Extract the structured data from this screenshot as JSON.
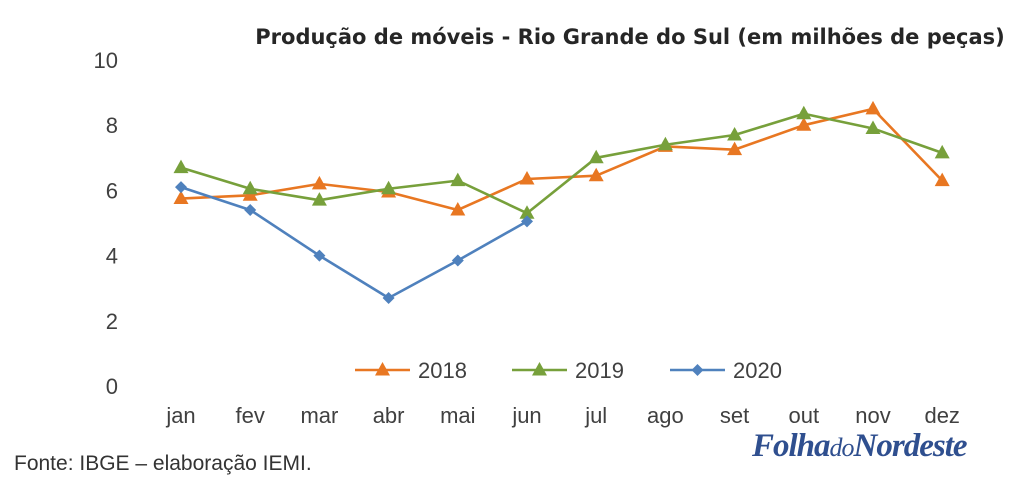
{
  "chart_data": {
    "type": "line",
    "title": "Produção de móveis - Rio Grande do Sul (em milhões de peças)",
    "xlabel": "",
    "ylabel": "",
    "ylim": [
      0,
      10
    ],
    "yticks": [
      "0",
      "2",
      "4",
      "6",
      "8",
      "10"
    ],
    "grid": false,
    "legend": "bottom-center",
    "categories": [
      "jan",
      "fev",
      "mar",
      "abr",
      "mai",
      "jun",
      "jul",
      "ago",
      "set",
      "out",
      "nov",
      "dez"
    ],
    "series": [
      {
        "name": "2018",
        "color": "#e87722",
        "marker": "triangle",
        "values": [
          5.75,
          5.85,
          6.2,
          5.95,
          5.4,
          6.35,
          6.45,
          7.35,
          7.25,
          8.0,
          8.5,
          6.3
        ]
      },
      {
        "name": "2019",
        "color": "#77a03b",
        "marker": "triangle",
        "values": [
          6.7,
          6.05,
          5.7,
          6.05,
          6.3,
          5.3,
          7.0,
          7.4,
          7.7,
          8.35,
          7.9,
          7.15
        ]
      },
      {
        "name": "2020",
        "color": "#4f81bd",
        "marker": "diamond",
        "values": [
          6.1,
          5.4,
          4.0,
          2.7,
          3.85,
          5.05,
          null,
          null,
          null,
          null,
          null,
          null
        ]
      }
    ]
  },
  "source": "Fonte: IBGE – elaboração IEMI.",
  "logo": {
    "part1": "Folha",
    "part2": "do",
    "part3": "Nordeste"
  }
}
